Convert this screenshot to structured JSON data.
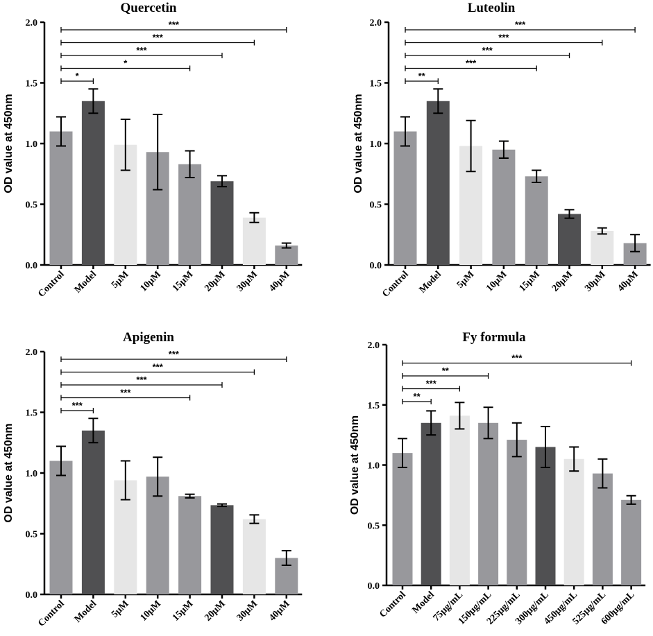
{
  "colors": {
    "medium_gray": "#98989c",
    "dark_gray": "#505052",
    "light_gray": "#e6e6e6",
    "axis": "#000000"
  },
  "chart_data": [
    {
      "type": "bar",
      "title": "Quercetin",
      "ylabel": "OD value at 450nm",
      "xlabel": "",
      "ylim": [
        0,
        2.0
      ],
      "yticks": [
        "0.0",
        "0.5",
        "1.0",
        "1.5",
        "2.0"
      ],
      "categories": [
        "Control",
        "Model",
        "5μM",
        "10μM",
        "15μM",
        "20μM",
        "30μM",
        "40μM"
      ],
      "values": [
        1.1,
        1.35,
        0.99,
        0.93,
        0.83,
        0.69,
        0.39,
        0.16
      ],
      "errors": [
        0.12,
        0.1,
        0.21,
        0.31,
        0.11,
        0.045,
        0.04,
        0.02
      ],
      "bar_colors": [
        "medium_gray",
        "dark_gray",
        "light_gray",
        "medium_gray",
        "medium_gray",
        "dark_gray",
        "light_gray",
        "medium_gray"
      ],
      "significance": [
        {
          "from": "Control",
          "to": "Model",
          "label": "*"
        },
        {
          "from": "Control",
          "to": "15μM",
          "label": "*"
        },
        {
          "from": "Control",
          "to": "20μM",
          "label": "***"
        },
        {
          "from": "Control",
          "to": "30μM",
          "label": "***"
        },
        {
          "from": "Control",
          "to": "40μM",
          "label": "***"
        }
      ]
    },
    {
      "type": "bar",
      "title": "Luteolin",
      "ylabel": "OD value at 450nm",
      "xlabel": "",
      "ylim": [
        0,
        2.0
      ],
      "yticks": [
        "0.0",
        "0.5",
        "1.0",
        "1.5",
        "2.0"
      ],
      "categories": [
        "Control",
        "Model",
        "5μM",
        "10μM",
        "15μM",
        "20μM",
        "30μM",
        "40μM"
      ],
      "values": [
        1.1,
        1.35,
        0.98,
        0.95,
        0.73,
        0.42,
        0.28,
        0.18
      ],
      "errors": [
        0.12,
        0.1,
        0.21,
        0.07,
        0.05,
        0.035,
        0.025,
        0.07
      ],
      "bar_colors": [
        "medium_gray",
        "dark_gray",
        "light_gray",
        "medium_gray",
        "medium_gray",
        "dark_gray",
        "light_gray",
        "medium_gray"
      ],
      "significance": [
        {
          "from": "Control",
          "to": "Model",
          "label": "**"
        },
        {
          "from": "Control",
          "to": "15μM",
          "label": "***"
        },
        {
          "from": "Control",
          "to": "20μM",
          "label": "***"
        },
        {
          "from": "Control",
          "to": "30μM",
          "label": "***"
        },
        {
          "from": "Control",
          "to": "40μM",
          "label": "***"
        }
      ]
    },
    {
      "type": "bar",
      "title": "Apigenin",
      "ylabel": "OD value at 450nm",
      "xlabel": "",
      "ylim": [
        0,
        2.0
      ],
      "yticks": [
        "0.0",
        "0.5",
        "1.0",
        "1.5",
        "2.0"
      ],
      "categories": [
        "Control",
        "Model",
        "5μM",
        "10μM",
        "15μM",
        "20μM",
        "30μM",
        "40μM"
      ],
      "values": [
        1.1,
        1.35,
        0.94,
        0.97,
        0.81,
        0.735,
        0.62,
        0.3
      ],
      "errors": [
        0.12,
        0.1,
        0.16,
        0.16,
        0.015,
        0.01,
        0.035,
        0.06
      ],
      "bar_colors": [
        "medium_gray",
        "dark_gray",
        "light_gray",
        "medium_gray",
        "medium_gray",
        "dark_gray",
        "light_gray",
        "medium_gray"
      ],
      "significance": [
        {
          "from": "Control",
          "to": "Model",
          "label": "***"
        },
        {
          "from": "Control",
          "to": "15μM",
          "label": "***"
        },
        {
          "from": "Control",
          "to": "20μM",
          "label": "***"
        },
        {
          "from": "Control",
          "to": "30μM",
          "label": "***"
        },
        {
          "from": "Control",
          "to": "40μM",
          "label": "***"
        }
      ]
    },
    {
      "type": "bar",
      "title": "Fy formula",
      "ylabel": "OD value at 450nm",
      "xlabel": "",
      "ylim": [
        0,
        2.0
      ],
      "yticks": [
        "0.0",
        "0.5",
        "1.0",
        "1.5",
        "2.0"
      ],
      "categories": [
        "Control",
        "Model",
        "75μg/mL",
        "150μg/mL",
        "225μg/mL",
        "300μg/mL",
        "450μg/mL",
        "525μg/mL",
        "600μg/mL"
      ],
      "values": [
        1.1,
        1.35,
        1.41,
        1.35,
        1.21,
        1.15,
        1.05,
        0.93,
        0.71
      ],
      "errors": [
        0.12,
        0.1,
        0.11,
        0.13,
        0.14,
        0.17,
        0.1,
        0.12,
        0.035
      ],
      "bar_colors": [
        "medium_gray",
        "dark_gray",
        "light_gray",
        "medium_gray",
        "medium_gray",
        "dark_gray",
        "light_gray",
        "medium_gray",
        "medium_gray"
      ],
      "significance": [
        {
          "from": "Control",
          "to": "Model",
          "label": "**"
        },
        {
          "from": "Control",
          "to": "75μg/mL",
          "label": "***"
        },
        {
          "from": "Control",
          "to": "150μg/mL",
          "label": "**"
        },
        {
          "from": "Control",
          "to": "600μg/mL",
          "label": "***"
        }
      ]
    }
  ]
}
